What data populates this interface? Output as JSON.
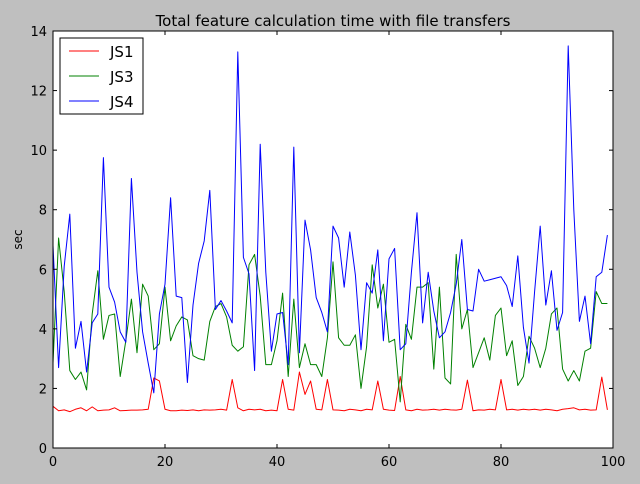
{
  "chart_data": {
    "type": "line",
    "title": "Total feature calculation time with file transfers",
    "xlabel": "",
    "ylabel": "sec",
    "xlim": [
      0,
      100
    ],
    "ylim": [
      0,
      14
    ],
    "xticks": [
      0,
      20,
      40,
      60,
      80,
      100
    ],
    "yticks": [
      0,
      2,
      4,
      6,
      8,
      10,
      12,
      14
    ],
    "grid": false,
    "legend_position": "top-left",
    "series": [
      {
        "name": "JS1",
        "color": "#ff0000",
        "values": [
          1.4,
          1.25,
          1.28,
          1.22,
          1.3,
          1.35,
          1.25,
          1.38,
          1.25,
          1.27,
          1.28,
          1.35,
          1.25,
          1.26,
          1.27,
          1.27,
          1.28,
          1.3,
          2.35,
          2.25,
          1.3,
          1.25,
          1.25,
          1.27,
          1.26,
          1.28,
          1.25,
          1.28,
          1.27,
          1.28,
          1.3,
          1.27,
          2.3,
          1.35,
          1.25,
          1.3,
          1.28,
          1.3,
          1.25,
          1.27,
          1.25,
          2.3,
          1.3,
          1.27,
          2.55,
          1.8,
          2.25,
          1.3,
          1.28,
          2.3,
          1.28,
          1.27,
          1.25,
          1.3,
          1.28,
          1.25,
          1.3,
          1.28,
          2.25,
          1.3,
          1.27,
          1.26,
          2.4,
          1.28,
          1.25,
          1.3,
          1.27,
          1.28,
          1.3,
          1.27,
          1.3,
          1.28,
          1.27,
          1.3,
          2.28,
          1.25,
          1.28,
          1.27,
          1.3,
          1.28,
          2.3,
          1.28,
          1.3,
          1.27,
          1.3,
          1.28,
          1.3,
          1.27,
          1.3,
          1.28,
          1.25,
          1.3,
          1.32,
          1.35,
          1.28,
          1.3,
          1.27,
          1.28,
          2.38,
          1.28
        ]
      },
      {
        "name": "JS3",
        "color": "#008000",
        "values": [
          2.85,
          7.05,
          5.25,
          2.6,
          2.3,
          2.55,
          1.95,
          4.5,
          5.95,
          3.65,
          4.45,
          4.5,
          2.4,
          3.6,
          5.0,
          3.2,
          5.5,
          5.1,
          3.3,
          3.5,
          5.4,
          3.6,
          4.1,
          4.4,
          4.3,
          3.1,
          3.0,
          2.95,
          4.25,
          4.75,
          4.85,
          4.4,
          3.45,
          3.25,
          3.4,
          6.15,
          6.5,
          5.1,
          2.8,
          2.8,
          3.6,
          5.2,
          2.4,
          5.0,
          2.7,
          3.5,
          2.8,
          2.8,
          2.4,
          3.7,
          6.25,
          3.7,
          3.45,
          3.45,
          3.8,
          2.0,
          3.4,
          6.15,
          4.7,
          5.5,
          3.55,
          3.65,
          1.55,
          4.15,
          3.65,
          5.4,
          5.4,
          5.55,
          2.65,
          5.4,
          2.35,
          2.15,
          6.5,
          4.0,
          4.65,
          2.7,
          3.2,
          3.7,
          2.95,
          4.45,
          4.7,
          3.1,
          3.6,
          2.1,
          2.4,
          3.75,
          3.35,
          2.7,
          3.35,
          4.5,
          4.7,
          2.65,
          2.25,
          2.6,
          2.25,
          3.25,
          3.35,
          5.25,
          4.85,
          4.85
        ]
      },
      {
        "name": "JS4",
        "color": "#0000ff",
        "values": [
          6.8,
          2.7,
          6.1,
          7.85,
          3.35,
          4.25,
          2.55,
          4.2,
          4.5,
          9.75,
          5.4,
          4.9,
          3.9,
          3.55,
          9.05,
          5.9,
          3.9,
          2.85,
          1.85,
          4.5,
          5.5,
          8.4,
          5.1,
          5.05,
          2.2,
          4.8,
          6.2,
          6.95,
          8.65,
          4.65,
          4.95,
          4.6,
          4.2,
          13.3,
          6.4,
          5.85,
          2.6,
          10.2,
          5.9,
          3.25,
          4.5,
          4.55,
          2.8,
          10.1,
          3.2,
          7.65,
          6.65,
          5.05,
          4.55,
          3.9,
          7.45,
          7.05,
          5.4,
          7.25,
          5.8,
          3.3,
          5.55,
          5.2,
          6.65,
          3.6,
          6.35,
          6.7,
          3.3,
          3.5,
          5.9,
          7.9,
          4.2,
          5.9,
          4.6,
          3.7,
          3.9,
          4.55,
          5.5,
          7.0,
          4.65,
          4.6,
          6.0,
          5.6,
          5.65,
          5.7,
          5.75,
          5.45,
          4.75,
          6.45,
          4.05,
          2.85,
          5.25,
          7.45,
          4.8,
          5.95,
          3.95,
          4.55,
          13.5,
          8.0,
          4.25,
          5.1,
          3.5,
          5.75,
          5.9,
          7.15
        ]
      }
    ]
  }
}
